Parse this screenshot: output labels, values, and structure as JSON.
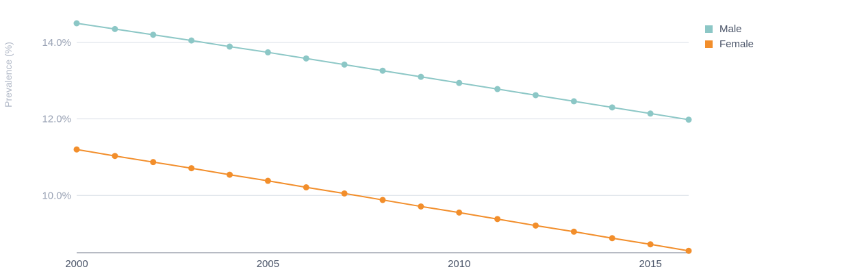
{
  "chart_data": {
    "type": "line",
    "ylabel": "Prevalence (%)",
    "xlabel": "",
    "x": [
      2000,
      2001,
      2002,
      2003,
      2004,
      2005,
      2006,
      2007,
      2008,
      2009,
      2010,
      2011,
      2012,
      2013,
      2014,
      2015,
      2016
    ],
    "xlim": [
      2000,
      2016
    ],
    "ylim": [
      8.5,
      14.5
    ],
    "x_ticks": [
      2000,
      2005,
      2010,
      2015
    ],
    "y_ticks": [
      10,
      12,
      14
    ],
    "y_tick_labels": [
      "10.0%",
      "12.0%",
      "14.0%"
    ],
    "grid": "horizontal",
    "legend_position": "top-right",
    "series": [
      {
        "name": "Male",
        "color": "#8cc7c6",
        "values": [
          14.5,
          14.35,
          14.2,
          14.05,
          13.89,
          13.74,
          13.58,
          13.42,
          13.26,
          13.1,
          12.94,
          12.78,
          12.62,
          12.46,
          12.3,
          12.14,
          11.98
        ]
      },
      {
        "name": "Female",
        "color": "#f28e2b",
        "values": [
          11.2,
          11.03,
          10.87,
          10.71,
          10.54,
          10.38,
          10.21,
          10.05,
          9.88,
          9.71,
          9.55,
          9.38,
          9.21,
          9.05,
          8.88,
          8.72,
          8.55
        ]
      }
    ]
  }
}
